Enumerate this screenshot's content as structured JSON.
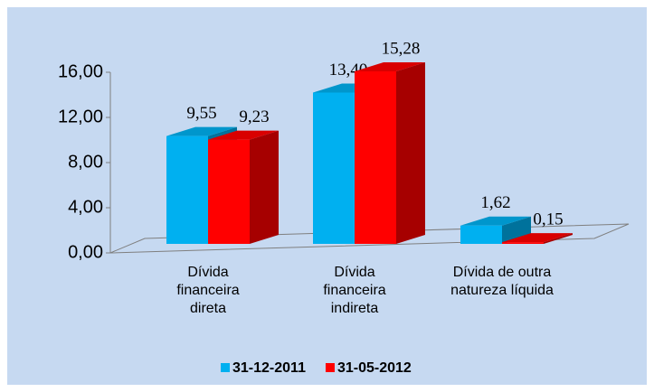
{
  "chart_data": {
    "type": "bar3d",
    "categories": [
      "Dívida financeira direta",
      "Dívida financeira indireta",
      "Dívida de outra natureza líquida"
    ],
    "series": [
      {
        "name": "31-12-2011",
        "color": "#00b0f0",
        "values": [
          9.55,
          13.4,
          1.62
        ],
        "value_labels": [
          "9,55",
          "13,40",
          "1,62"
        ]
      },
      {
        "name": "31-05-2012",
        "color": "#ff0000",
        "values": [
          9.23,
          15.28,
          0.15
        ],
        "value_labels": [
          "9,23",
          "15,28",
          "0,15"
        ]
      }
    ],
    "ylim": [
      0,
      16
    ],
    "yticks": [
      {
        "value": 0,
        "label": "0,00"
      },
      {
        "value": 4,
        "label": "4,00"
      },
      {
        "value": 8,
        "label": "8,00"
      },
      {
        "value": 12,
        "label": "12,00"
      },
      {
        "value": 16,
        "label": "16,00"
      }
    ],
    "legend": "bottom"
  }
}
